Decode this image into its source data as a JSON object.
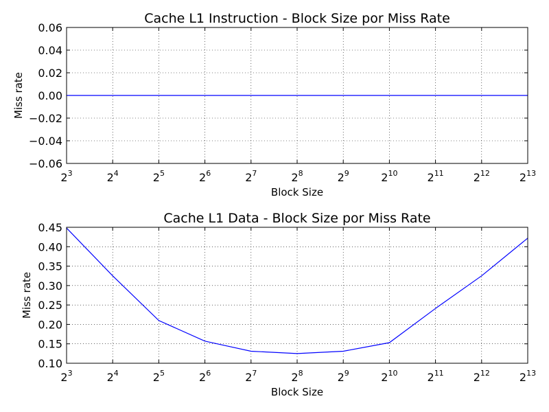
{
  "chart_data": [
    {
      "type": "line",
      "title": "Cache L1 Instruction - Block Size por Miss Rate",
      "xlabel": "Block Size",
      "ylabel": "Miss rate",
      "x_scale": "log2",
      "x": [
        8,
        16,
        32,
        64,
        128,
        256,
        512,
        1024,
        2048,
        4096,
        8192
      ],
      "xtick_labels": [
        {
          "base": "2",
          "exp": "3"
        },
        {
          "base": "2",
          "exp": "4"
        },
        {
          "base": "2",
          "exp": "5"
        },
        {
          "base": "2",
          "exp": "6"
        },
        {
          "base": "2",
          "exp": "7"
        },
        {
          "base": "2",
          "exp": "8"
        },
        {
          "base": "2",
          "exp": "9"
        },
        {
          "base": "2",
          "exp": "10"
        },
        {
          "base": "2",
          "exp": "11"
        },
        {
          "base": "2",
          "exp": "12"
        },
        {
          "base": "2",
          "exp": "13"
        }
      ],
      "xlim": [
        8,
        8192
      ],
      "ylim": [
        -0.06,
        0.06
      ],
      "yticks": [
        -0.06,
        -0.04,
        -0.02,
        0.0,
        0.02,
        0.04,
        0.06
      ],
      "ytick_labels": [
        "−0.06",
        "−0.04",
        "−0.02",
        "0.00",
        "0.02",
        "0.04",
        "0.06"
      ],
      "grid": true,
      "series": [
        {
          "color": "#0000ff",
          "values": [
            0,
            0,
            0,
            0,
            0,
            0,
            0,
            0,
            0,
            0,
            0
          ]
        }
      ]
    },
    {
      "type": "line",
      "title": "Cache L1 Data - Block Size por Miss Rate",
      "xlabel": "Block Size",
      "ylabel": "Miss rate",
      "x_scale": "log2",
      "x": [
        8,
        16,
        32,
        64,
        128,
        256,
        512,
        1024,
        2048,
        4096,
        8192
      ],
      "xtick_labels": [
        {
          "base": "2",
          "exp": "3"
        },
        {
          "base": "2",
          "exp": "4"
        },
        {
          "base": "2",
          "exp": "5"
        },
        {
          "base": "2",
          "exp": "6"
        },
        {
          "base": "2",
          "exp": "7"
        },
        {
          "base": "2",
          "exp": "8"
        },
        {
          "base": "2",
          "exp": "9"
        },
        {
          "base": "2",
          "exp": "10"
        },
        {
          "base": "2",
          "exp": "11"
        },
        {
          "base": "2",
          "exp": "12"
        },
        {
          "base": "2",
          "exp": "13"
        }
      ],
      "xlim": [
        8,
        8192
      ],
      "ylim": [
        0.1,
        0.45
      ],
      "yticks": [
        0.1,
        0.15,
        0.2,
        0.25,
        0.3,
        0.35,
        0.4,
        0.45
      ],
      "ytick_labels": [
        "0.10",
        "0.15",
        "0.20",
        "0.25",
        "0.30",
        "0.35",
        "0.40",
        "0.45"
      ],
      "grid": true,
      "series": [
        {
          "color": "#0000ff",
          "values": [
            0.448,
            0.325,
            0.21,
            0.157,
            0.131,
            0.125,
            0.131,
            0.153,
            0.241,
            0.325,
            0.422
          ]
        }
      ]
    }
  ]
}
